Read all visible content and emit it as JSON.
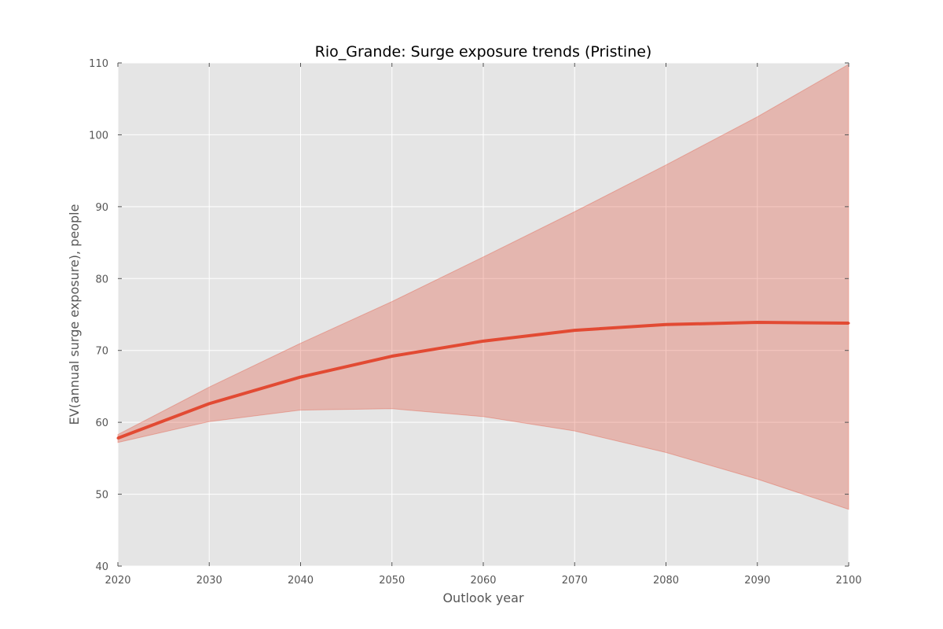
{
  "chart_data": {
    "type": "line",
    "title": "Rio_Grande: Surge exposure trends (Pristine)",
    "xlabel": "Outlook year",
    "ylabel": "EV(annual surge exposure), people",
    "xlim": [
      2020,
      2100
    ],
    "ylim": [
      40,
      110
    ],
    "xticks": [
      2020,
      2030,
      2040,
      2050,
      2060,
      2070,
      2080,
      2090,
      2100
    ],
    "yticks": [
      40,
      50,
      60,
      70,
      80,
      90,
      100,
      110
    ],
    "grid": true,
    "x": [
      2020,
      2030,
      2040,
      2050,
      2060,
      2070,
      2080,
      2090,
      2100
    ],
    "series": [
      {
        "values": [
          57.8,
          62.6,
          66.3,
          69.2,
          71.3,
          72.8,
          73.6,
          73.9,
          73.8
        ],
        "lower": [
          57.2,
          60.1,
          61.7,
          61.9,
          60.8,
          58.8,
          55.8,
          52.1,
          47.9
        ],
        "upper": [
          58.3,
          64.9,
          71.0,
          76.8,
          83.0,
          89.3,
          95.8,
          102.5,
          109.8
        ],
        "color": "#e24a33",
        "band_color": "#e24a33"
      }
    ],
    "plot_background": "#e5e5e5",
    "grid_color": "#ffffff"
  }
}
